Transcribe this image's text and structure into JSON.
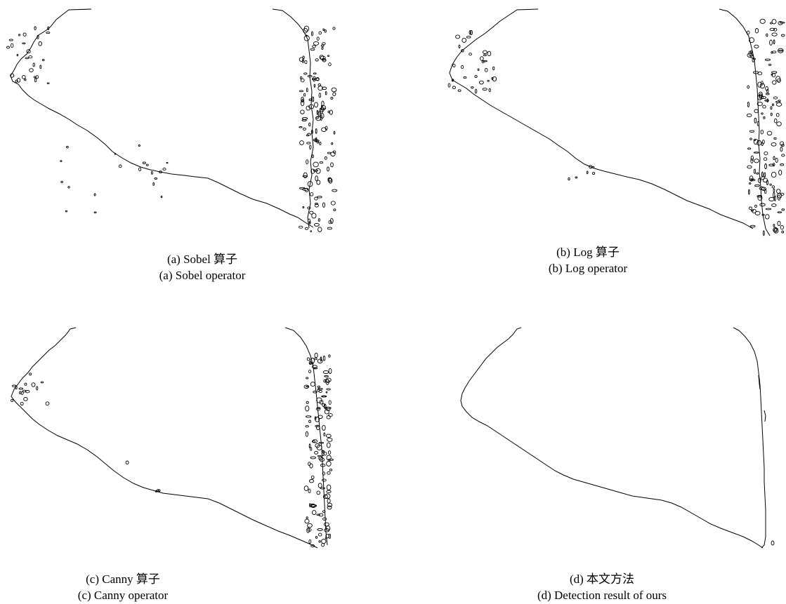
{
  "figure": {
    "panels": [
      {
        "id": "a",
        "caption_cn": "(a) Sobel 算子",
        "caption_en": "(a) Sobel operator"
      },
      {
        "id": "b",
        "caption_cn": "(b) Log 算子",
        "caption_en": "(b) Log operator"
      },
      {
        "id": "c",
        "caption_cn": "(c) Canny 算子",
        "caption_en": "(c) Canny operator"
      },
      {
        "id": "d",
        "caption_cn": "(d) 本文方法",
        "caption_en": "(d) Detection result of ours"
      }
    ]
  }
}
